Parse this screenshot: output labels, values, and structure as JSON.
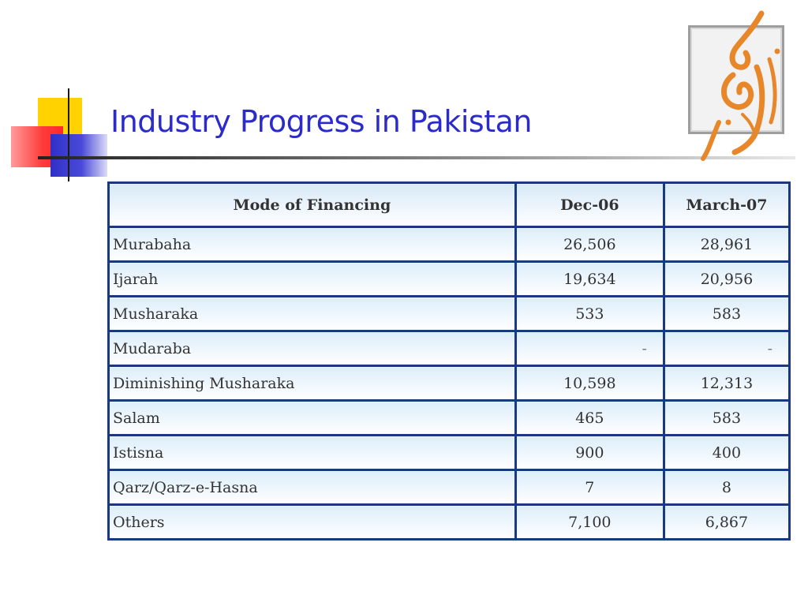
{
  "slide": {
    "title": "Industry Progress in Pakistan"
  },
  "table": {
    "headers": [
      "Mode of Financing",
      "Dec-06",
      "March-07"
    ],
    "rows": [
      [
        "Murabaha",
        "26,506",
        "28,961"
      ],
      [
        "Ijarah",
        "19,634",
        "20,956"
      ],
      [
        "Musharaka",
        "533",
        "583"
      ],
      [
        "Mudaraba",
        "-",
        "-"
      ],
      [
        "Diminishing Musharaka",
        "10,598",
        "12,313"
      ],
      [
        "Salam",
        "465",
        "583"
      ],
      [
        "Istisna",
        "900",
        "400"
      ],
      [
        "Qarz/Qarz-e-Hasna",
        "7",
        "8"
      ],
      [
        "Others",
        "7,100",
        "6,867"
      ]
    ]
  },
  "colors": {
    "title": "#2b2bcc",
    "table_border": "#1a3a80",
    "logo_orange": "#e8862a"
  },
  "icons": [
    "corner-squares-decoration",
    "calligraphy-logo"
  ]
}
